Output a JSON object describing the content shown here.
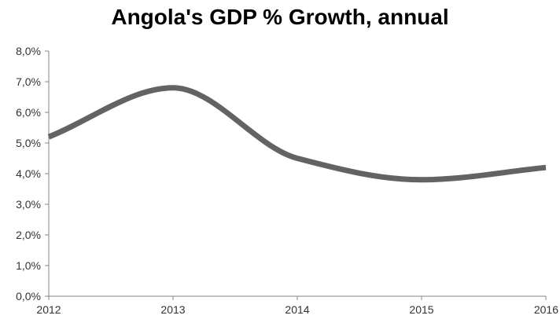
{
  "chart_data": {
    "type": "line",
    "title": "Angola's GDP % Growth, annual",
    "xlabel": "",
    "ylabel": "",
    "x": [
      2012,
      2013,
      2014,
      2015,
      2016
    ],
    "x_tick_labels": [
      "2012",
      "2013",
      "2014",
      "2015",
      "2016"
    ],
    "y_tick_labels": [
      "0,0%",
      "1,0%",
      "2,0%",
      "3,0%",
      "4,0%",
      "5,0%",
      "6,0%",
      "7,0%",
      "8,0%"
    ],
    "series": [
      {
        "values": [
          5.2,
          6.8,
          4.5,
          3.8,
          4.2
        ]
      }
    ],
    "ylim": [
      0,
      8
    ],
    "grid": false,
    "line_style": "smooth",
    "colors": {
      "line": "#636363",
      "axis": "#868686",
      "text": "#000000"
    }
  }
}
